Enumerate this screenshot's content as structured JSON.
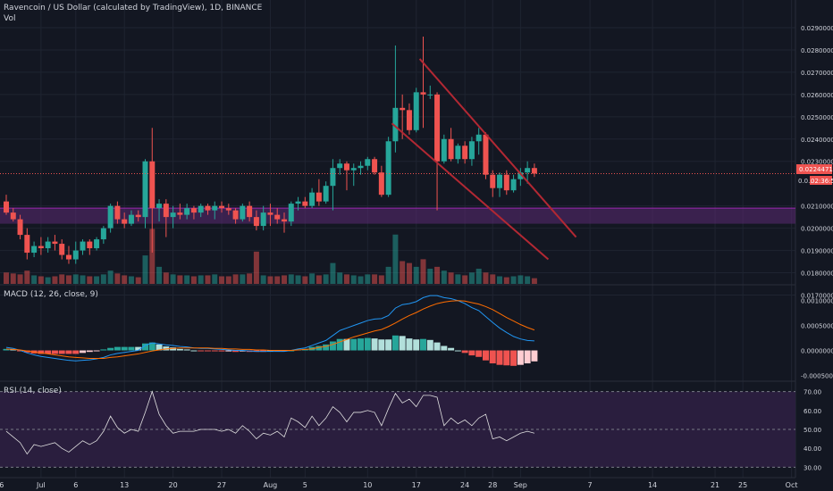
{
  "colors": {
    "background": "#131722",
    "grid": "#1f2431",
    "up": "#26a69a",
    "down": "#ef5350",
    "trendline": "#b22833",
    "zone": "#5b2a73",
    "zone_border": "#9c27b0",
    "macd_line": "#2196f3",
    "signal_line": "#ff6d00",
    "hist_pos_strong": "#26a69a",
    "hist_pos_weak": "#b2dfdb",
    "hist_neg_strong": "#ef5350",
    "hist_neg_weak": "#ffcdd2",
    "rsi_line": "#e0e0e0",
    "rsi_band": "#2a1e3e",
    "last_price_tag": "#ef5350"
  },
  "header": {
    "title": "Ravencoin / US Dollar (calculated by TradingView), 1D, BINANCE",
    "vol_label": "Vol",
    "macd_label": "MACD (12, 26, close, 9)",
    "rsi_label": "RSI (14, close)"
  },
  "price_axis": {
    "ticks": [
      "0.02900000",
      "0.02800000",
      "0.02700000",
      "0.02600000",
      "0.02500000",
      "0.02400000",
      "0.02300000",
      "0.02100000",
      "0.02000000",
      "0.01900000",
      "0.01800000",
      "0.01700000"
    ],
    "last_price_label": "0.02244714",
    "countdown_label": "02:36:54",
    "partial_label": "0.0..."
  },
  "macd_axis": {
    "ticks": [
      "0.00100000",
      "0.00050000",
      "0.00000000",
      "-0.00050000"
    ]
  },
  "rsi_axis": {
    "ticks": [
      "70.00",
      "60.00",
      "50.00",
      "40.00",
      "30.00"
    ]
  },
  "x_axis": {
    "labels": [
      "26",
      "Jul",
      "6",
      "13",
      "20",
      "27",
      "Aug",
      "5",
      "10",
      "17",
      "24",
      "28",
      "Sep",
      "7",
      "14",
      "21",
      "25",
      "Oct"
    ]
  },
  "chart_data": {
    "type": "candlestick",
    "symbol": "Ravencoin / US Dollar",
    "interval": "1D",
    "exchange": "BINANCE",
    "ylim": [
      0.0175,
      0.0295
    ],
    "candles": [
      {
        "o": 0.0212,
        "h": 0.0215,
        "l": 0.0206,
        "c": 0.0207
      },
      {
        "o": 0.0207,
        "h": 0.0209,
        "l": 0.0203,
        "c": 0.0204
      },
      {
        "o": 0.0204,
        "h": 0.0206,
        "l": 0.0195,
        "c": 0.0197
      },
      {
        "o": 0.0197,
        "h": 0.02,
        "l": 0.0186,
        "c": 0.0189
      },
      {
        "o": 0.0189,
        "h": 0.0194,
        "l": 0.0187,
        "c": 0.0192
      },
      {
        "o": 0.0192,
        "h": 0.0196,
        "l": 0.0188,
        "c": 0.0191
      },
      {
        "o": 0.0191,
        "h": 0.0196,
        "l": 0.0189,
        "c": 0.0194
      },
      {
        "o": 0.0194,
        "h": 0.0197,
        "l": 0.019,
        "c": 0.0193
      },
      {
        "o": 0.0193,
        "h": 0.0195,
        "l": 0.0186,
        "c": 0.0188
      },
      {
        "o": 0.0188,
        "h": 0.0192,
        "l": 0.0184,
        "c": 0.0186
      },
      {
        "o": 0.0186,
        "h": 0.0194,
        "l": 0.0184,
        "c": 0.019
      },
      {
        "o": 0.019,
        "h": 0.0195,
        "l": 0.0188,
        "c": 0.0194
      },
      {
        "o": 0.0194,
        "h": 0.0195,
        "l": 0.0188,
        "c": 0.0191
      },
      {
        "o": 0.0191,
        "h": 0.0196,
        "l": 0.019,
        "c": 0.0195
      },
      {
        "o": 0.0195,
        "h": 0.0201,
        "l": 0.0193,
        "c": 0.02
      },
      {
        "o": 0.02,
        "h": 0.0211,
        "l": 0.0198,
        "c": 0.021
      },
      {
        "o": 0.021,
        "h": 0.0212,
        "l": 0.0202,
        "c": 0.0204
      },
      {
        "o": 0.0204,
        "h": 0.0207,
        "l": 0.02,
        "c": 0.0202
      },
      {
        "o": 0.0202,
        "h": 0.0208,
        "l": 0.0201,
        "c": 0.0206
      },
      {
        "o": 0.0206,
        "h": 0.0208,
        "l": 0.0203,
        "c": 0.0205
      },
      {
        "o": 0.0205,
        "h": 0.0231,
        "l": 0.02,
        "c": 0.023
      },
      {
        "o": 0.023,
        "h": 0.0245,
        "l": 0.0189,
        "c": 0.0209
      },
      {
        "o": 0.0209,
        "h": 0.0213,
        "l": 0.0203,
        "c": 0.0211
      },
      {
        "o": 0.0211,
        "h": 0.0213,
        "l": 0.0196,
        "c": 0.0205
      },
      {
        "o": 0.0205,
        "h": 0.021,
        "l": 0.02,
        "c": 0.0207
      },
      {
        "o": 0.0207,
        "h": 0.0211,
        "l": 0.0204,
        "c": 0.0206
      },
      {
        "o": 0.0206,
        "h": 0.0211,
        "l": 0.0204,
        "c": 0.0209
      },
      {
        "o": 0.0209,
        "h": 0.021,
        "l": 0.0204,
        "c": 0.0207
      },
      {
        "o": 0.0207,
        "h": 0.0211,
        "l": 0.0205,
        "c": 0.021
      },
      {
        "o": 0.021,
        "h": 0.0211,
        "l": 0.0206,
        "c": 0.0208
      },
      {
        "o": 0.0208,
        "h": 0.0212,
        "l": 0.0204,
        "c": 0.021
      },
      {
        "o": 0.021,
        "h": 0.0212,
        "l": 0.0207,
        "c": 0.0209
      },
      {
        "o": 0.0209,
        "h": 0.0211,
        "l": 0.0206,
        "c": 0.0208
      },
      {
        "o": 0.0208,
        "h": 0.0209,
        "l": 0.0202,
        "c": 0.0204
      },
      {
        "o": 0.0204,
        "h": 0.0211,
        "l": 0.0203,
        "c": 0.021
      },
      {
        "o": 0.021,
        "h": 0.0212,
        "l": 0.0203,
        "c": 0.0205
      },
      {
        "o": 0.0205,
        "h": 0.0208,
        "l": 0.0199,
        "c": 0.0201
      },
      {
        "o": 0.0201,
        "h": 0.021,
        "l": 0.0199,
        "c": 0.0207
      },
      {
        "o": 0.0207,
        "h": 0.0211,
        "l": 0.0201,
        "c": 0.0206
      },
      {
        "o": 0.0206,
        "h": 0.0209,
        "l": 0.0202,
        "c": 0.0204
      },
      {
        "o": 0.0204,
        "h": 0.0207,
        "l": 0.0198,
        "c": 0.0203
      },
      {
        "o": 0.0203,
        "h": 0.0212,
        "l": 0.0201,
        "c": 0.0211
      },
      {
        "o": 0.0211,
        "h": 0.0214,
        "l": 0.0208,
        "c": 0.0212
      },
      {
        "o": 0.0212,
        "h": 0.0214,
        "l": 0.0209,
        "c": 0.021
      },
      {
        "o": 0.021,
        "h": 0.0218,
        "l": 0.0209,
        "c": 0.0216
      },
      {
        "o": 0.0216,
        "h": 0.0222,
        "l": 0.021,
        "c": 0.0212
      },
      {
        "o": 0.0212,
        "h": 0.0221,
        "l": 0.0211,
        "c": 0.0219
      },
      {
        "o": 0.0219,
        "h": 0.0231,
        "l": 0.0208,
        "c": 0.0227
      },
      {
        "o": 0.0227,
        "h": 0.0231,
        "l": 0.0224,
        "c": 0.0229
      },
      {
        "o": 0.0229,
        "h": 0.023,
        "l": 0.0217,
        "c": 0.0226
      },
      {
        "o": 0.0226,
        "h": 0.0229,
        "l": 0.0219,
        "c": 0.0227
      },
      {
        "o": 0.0227,
        "h": 0.023,
        "l": 0.0224,
        "c": 0.0228
      },
      {
        "o": 0.0228,
        "h": 0.0232,
        "l": 0.0226,
        "c": 0.0231
      },
      {
        "o": 0.0231,
        "h": 0.0232,
        "l": 0.0224,
        "c": 0.0225
      },
      {
        "o": 0.0225,
        "h": 0.0228,
        "l": 0.0214,
        "c": 0.0215
      },
      {
        "o": 0.0215,
        "h": 0.0241,
        "l": 0.0214,
        "c": 0.0239
      },
      {
        "o": 0.0239,
        "h": 0.0282,
        "l": 0.0234,
        "c": 0.0254
      },
      {
        "o": 0.0254,
        "h": 0.026,
        "l": 0.024,
        "c": 0.0253
      },
      {
        "o": 0.0253,
        "h": 0.0256,
        "l": 0.0242,
        "c": 0.0244
      },
      {
        "o": 0.0244,
        "h": 0.0263,
        "l": 0.0243,
        "c": 0.0261
      },
      {
        "o": 0.0261,
        "h": 0.0286,
        "l": 0.0245,
        "c": 0.026
      },
      {
        "o": 0.026,
        "h": 0.0264,
        "l": 0.0258,
        "c": 0.026
      },
      {
        "o": 0.026,
        "h": 0.0261,
        "l": 0.0208,
        "c": 0.023
      },
      {
        "o": 0.023,
        "h": 0.0242,
        "l": 0.0229,
        "c": 0.024
      },
      {
        "o": 0.024,
        "h": 0.0245,
        "l": 0.023,
        "c": 0.0231
      },
      {
        "o": 0.0231,
        "h": 0.0238,
        "l": 0.0229,
        "c": 0.0237
      },
      {
        "o": 0.0237,
        "h": 0.0239,
        "l": 0.0229,
        "c": 0.0231
      },
      {
        "o": 0.0231,
        "h": 0.0241,
        "l": 0.0228,
        "c": 0.0239
      },
      {
        "o": 0.0239,
        "h": 0.0245,
        "l": 0.0233,
        "c": 0.0242
      },
      {
        "o": 0.0242,
        "h": 0.0243,
        "l": 0.0222,
        "c": 0.0224
      },
      {
        "o": 0.0224,
        "h": 0.0226,
        "l": 0.0214,
        "c": 0.0218
      },
      {
        "o": 0.0218,
        "h": 0.0225,
        "l": 0.0214,
        "c": 0.0224
      },
      {
        "o": 0.0224,
        "h": 0.0226,
        "l": 0.0215,
        "c": 0.0217
      },
      {
        "o": 0.0217,
        "h": 0.0224,
        "l": 0.0216,
        "c": 0.0222
      },
      {
        "o": 0.0222,
        "h": 0.0227,
        "l": 0.0219,
        "c": 0.0225
      },
      {
        "o": 0.0225,
        "h": 0.023,
        "l": 0.022,
        "c": 0.0227
      },
      {
        "o": 0.0227,
        "h": 0.0229,
        "l": 0.0223,
        "c": 0.02245
      }
    ],
    "volume": [
      0.6,
      0.55,
      0.5,
      0.7,
      0.45,
      0.4,
      0.35,
      0.4,
      0.5,
      0.45,
      0.5,
      0.45,
      0.4,
      0.4,
      0.5,
      0.7,
      0.55,
      0.45,
      0.4,
      0.35,
      1.5,
      2.9,
      0.9,
      0.6,
      0.5,
      0.45,
      0.45,
      0.4,
      0.45,
      0.45,
      0.5,
      0.4,
      0.4,
      0.5,
      0.5,
      0.55,
      1.7,
      0.45,
      0.4,
      0.4,
      0.45,
      0.5,
      0.45,
      0.4,
      0.55,
      0.45,
      0.5,
      1.1,
      0.6,
      0.5,
      0.45,
      0.4,
      0.5,
      0.5,
      0.45,
      0.9,
      2.6,
      1.2,
      1.1,
      0.9,
      1.3,
      0.8,
      0.9,
      0.7,
      0.6,
      0.5,
      0.45,
      0.6,
      0.8,
      0.6,
      0.5,
      0.4,
      0.35,
      0.4,
      0.45,
      0.4,
      0.3
    ],
    "macd": [
      6e-05,
      4e-05,
      0.0,
      -5e-05,
      -9e-05,
      -0.00012,
      -0.00014,
      -0.00016,
      -0.00018,
      -0.0002,
      -0.00021,
      -0.0002,
      -0.00019,
      -0.00017,
      -0.00014,
      -9e-05,
      -6e-05,
      -4e-05,
      -2e-05,
      0.0,
      0.0001,
      0.00015,
      0.00013,
      0.00011,
      0.0001,
      8e-05,
      7e-05,
      5e-05,
      4e-05,
      4e-05,
      3e-05,
      2e-05,
      1e-05,
      0.0,
      0.0,
      -1e-05,
      -2e-05,
      -2e-05,
      -2e-05,
      -2e-05,
      -2e-05,
      0.0,
      3e-05,
      5e-05,
      0.0001,
      0.00015,
      0.0002,
      0.0003,
      0.0004,
      0.00045,
      0.0005,
      0.00055,
      0.0006,
      0.00063,
      0.00064,
      0.0007,
      0.00085,
      0.00092,
      0.00094,
      0.00098,
      0.00106,
      0.0011,
      0.0011,
      0.00106,
      0.00104,
      0.001,
      0.00094,
      0.00086,
      0.0008,
      0.00068,
      0.00056,
      0.00045,
      0.00036,
      0.00028,
      0.00023,
      0.0002,
      0.00019
    ],
    "signal": [
      3e-05,
      2e-05,
      1e-05,
      -1e-05,
      -3e-05,
      -5e-05,
      -7e-05,
      -9e-05,
      -0.00011,
      -0.00013,
      -0.00014,
      -0.00015,
      -0.00016,
      -0.00016,
      -0.00016,
      -0.00014,
      -0.00013,
      -0.00011,
      -9e-05,
      -7e-05,
      -4e-05,
      -1e-05,
      1e-05,
      3e-05,
      4e-05,
      5e-05,
      5e-05,
      5e-05,
      5e-05,
      5e-05,
      4e-05,
      4e-05,
      3e-05,
      3e-05,
      2e-05,
      2e-05,
      1e-05,
      1e-05,
      0.0,
      0.0,
      0.0,
      0.0,
      1e-05,
      2e-05,
      3e-05,
      6e-05,
      8e-05,
      0.00012,
      0.00017,
      0.00022,
      0.00027,
      0.00031,
      0.00035,
      0.00039,
      0.00042,
      0.00048,
      0.00055,
      0.00063,
      0.0007,
      0.00076,
      0.00083,
      0.00089,
      0.00094,
      0.00097,
      0.00099,
      0.001,
      0.00099,
      0.00096,
      0.00093,
      0.00088,
      0.00082,
      0.00074,
      0.00066,
      0.00059,
      0.00052,
      0.00046,
      0.00041
    ],
    "rsi": [
      49,
      46,
      43,
      37,
      42,
      41,
      42,
      43,
      40,
      38,
      41,
      44,
      42,
      44,
      49,
      57,
      51,
      48,
      50,
      49,
      59,
      70,
      58,
      52,
      48,
      49,
      49,
      49,
      50,
      50,
      50,
      49,
      50,
      48,
      52,
      49,
      45,
      48,
      47,
      49,
      46,
      56,
      54,
      51,
      57,
      52,
      56,
      62,
      59,
      54,
      59,
      59,
      60,
      59,
      52,
      61,
      69,
      64,
      66,
      62,
      68,
      68,
      67,
      52,
      56,
      53,
      55,
      52,
      56,
      58,
      45,
      46,
      44,
      46,
      48,
      49,
      48
    ],
    "macd_ylim": [
      -0.0006,
      0.0013
    ],
    "rsi_ylim": [
      25,
      75
    ],
    "rsi_bands": [
      70,
      50,
      30
    ],
    "zone_band": [
      0.0202,
      0.0209
    ],
    "last_price": 0.02244714,
    "trendlines": [
      {
        "from": {
          "i": 59.5,
          "p": 0.0276
        },
        "to": {
          "i": 82,
          "p": 0.0196
        }
      },
      {
        "from": {
          "i": 55.5,
          "p": 0.0247
        },
        "to": {
          "i": 78,
          "p": 0.0186
        }
      }
    ]
  }
}
